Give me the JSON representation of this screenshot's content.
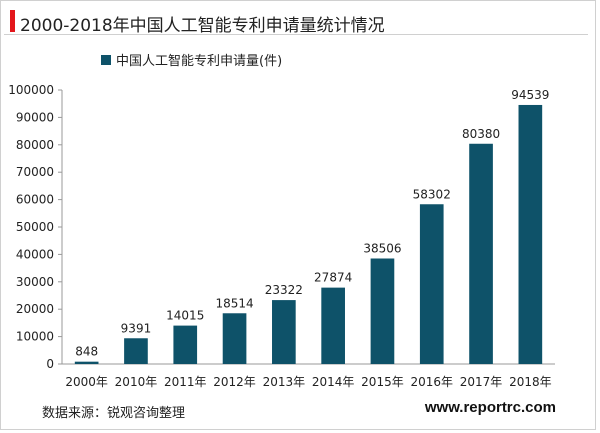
{
  "title": "2000-2018年中国人工智能专利申请量统计情况",
  "source": "数据来源：锐观咨询整理",
  "site": "www.reportrc.com",
  "colors": {
    "accent": "#e3161b",
    "bar": "#0e5269"
  },
  "chart_data": {
    "type": "bar",
    "categories": [
      "2000年",
      "2010年",
      "2011年",
      "2012年",
      "2013年",
      "2014年",
      "2015年",
      "2016年",
      "2017年",
      "2018年"
    ],
    "series": [
      {
        "name": "中国人工智能专利申请量(件)",
        "values": [
          848,
          9391,
          14015,
          18514,
          23322,
          27874,
          38506,
          58302,
          80380,
          94539
        ]
      }
    ],
    "ylim": [
      0,
      100000
    ],
    "yticks": [
      0,
      10000,
      20000,
      30000,
      40000,
      50000,
      60000,
      70000,
      80000,
      90000,
      100000
    ],
    "legend": "top-left",
    "grid": false
  }
}
